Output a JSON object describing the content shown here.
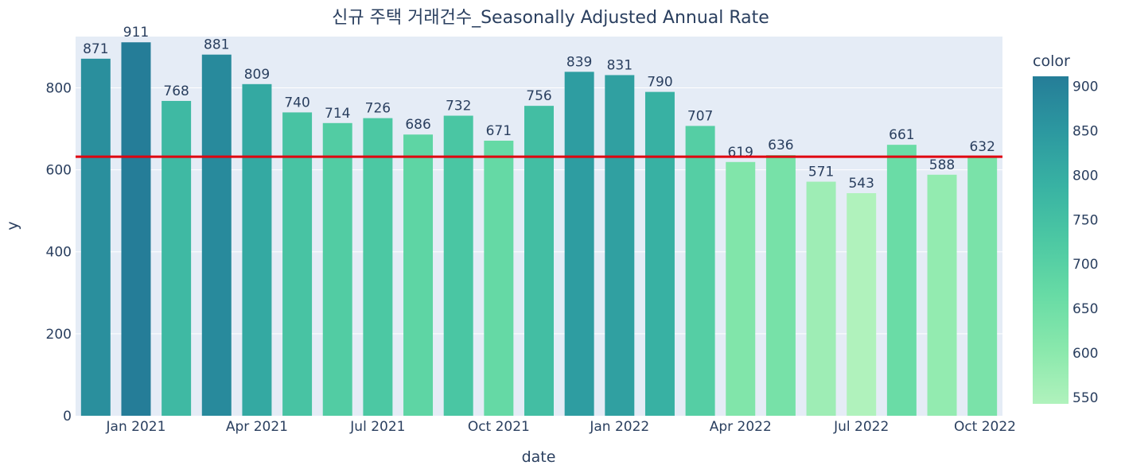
{
  "chart_data": {
    "type": "bar",
    "title": "신규 주택 거래건수_Seasonally Adjusted Annual Rate",
    "xlabel": "date",
    "ylabel": "y",
    "ylim": [
      0,
      925
    ],
    "y_ticks": [
      0,
      200,
      400,
      600,
      800
    ],
    "x": [
      "2020-12",
      "2021-01",
      "2021-02",
      "2021-03",
      "2021-04",
      "2021-05",
      "2021-06",
      "2021-07",
      "2021-08",
      "2021-09",
      "2021-10",
      "2021-11",
      "2021-12",
      "2022-01",
      "2022-02",
      "2022-03",
      "2022-04",
      "2022-05",
      "2022-06",
      "2022-07",
      "2022-08",
      "2022-09",
      "2022-10"
    ],
    "values": [
      871,
      911,
      768,
      881,
      809,
      740,
      714,
      726,
      686,
      732,
      671,
      756,
      839,
      831,
      790,
      707,
      619,
      636,
      571,
      543,
      661,
      588,
      632
    ],
    "x_ticks": [
      {
        "at": "2021-01",
        "label": "Jan 2021"
      },
      {
        "at": "2021-04",
        "label": "Apr 2021"
      },
      {
        "at": "2021-07",
        "label": "Jul 2021"
      },
      {
        "at": "2021-10",
        "label": "Oct 2021"
      },
      {
        "at": "2022-01",
        "label": "Jan 2022"
      },
      {
        "at": "2022-04",
        "label": "Apr 2022"
      },
      {
        "at": "2022-07",
        "label": "Jul 2022"
      },
      {
        "at": "2022-10",
        "label": "Oct 2022"
      }
    ],
    "reference_line": {
      "y": 632,
      "color": "#e0000f"
    },
    "grid": true,
    "colorbar": {
      "title": "color",
      "range": [
        543,
        911
      ],
      "ticks": [
        550,
        600,
        650,
        700,
        750,
        800,
        850,
        900
      ],
      "colors": [
        "#b0f2bc",
        "#89e8ac",
        "#67dba5",
        "#4cc8a3",
        "#38b2a3",
        "#2c98a0",
        "#257d98"
      ]
    },
    "colors": {
      "plot_bg": "#e5ecf6",
      "gridline": "#ffffff",
      "text": "#2a3f5f"
    }
  }
}
